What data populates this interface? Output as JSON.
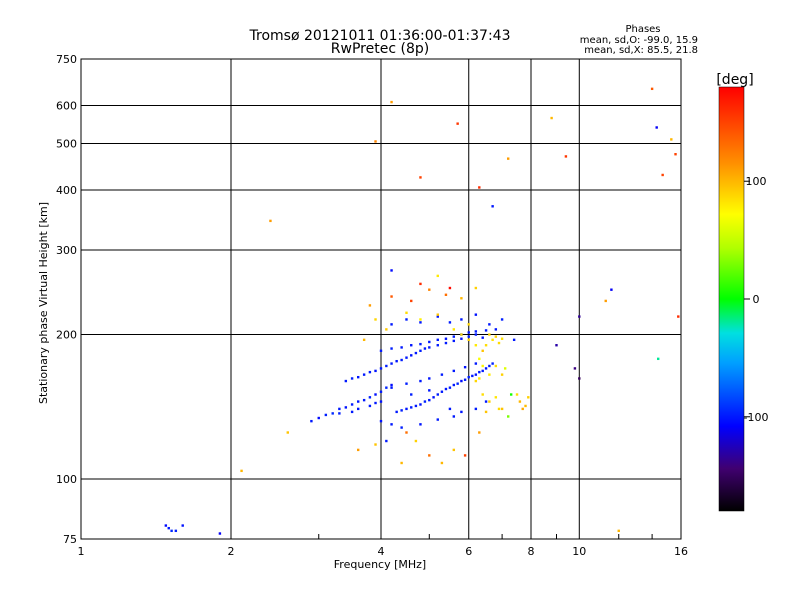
{
  "chart_data": {
    "type": "scatter",
    "title": "Tromsø 20121011 01:36:00-01:37:43",
    "subtitle": "RwPretec (8p)",
    "xlabel": "Frequency [MHz]",
    "ylabel": "Stationary phase Virtual Height [km]",
    "x_scale": "log",
    "y_scale": "log",
    "xlim": [
      1,
      16
    ],
    "ylim": [
      75,
      750
    ],
    "grid": true,
    "x_ticks": [
      1,
      2,
      4,
      6,
      8,
      10,
      16
    ],
    "x_tick_labels": [
      "1",
      "2",
      "4",
      "6",
      "8",
      "10",
      "16"
    ],
    "y_ticks": [
      75,
      100,
      200,
      300,
      400,
      500,
      600,
      750
    ],
    "y_tick_labels": [
      "75",
      "100",
      "200",
      "300",
      "400",
      "500",
      "600",
      "750"
    ],
    "legend": {
      "title": "Phases",
      "lines": [
        "mean, sd,O: -99.0, 15.9",
        "mean, sd,X: 85.5, 21.8"
      ]
    },
    "colorbar": {
      "label": "[deg]",
      "range": [
        -180,
        180
      ],
      "ticks": [
        100,
        0,
        -100
      ],
      "tick_labels": [
        "100",
        "0",
        "-100"
      ]
    },
    "points": [
      {
        "x": 1.5,
        "y": 79,
        "c": -100
      },
      {
        "x": 1.52,
        "y": 78,
        "c": -95
      },
      {
        "x": 1.48,
        "y": 80,
        "c": -105
      },
      {
        "x": 1.55,
        "y": 78,
        "c": -98
      },
      {
        "x": 1.6,
        "y": 80,
        "c": -102
      },
      {
        "x": 1.9,
        "y": 77,
        "c": -110
      },
      {
        "x": 2.1,
        "y": 104,
        "c": 100
      },
      {
        "x": 2.4,
        "y": 345,
        "c": 110
      },
      {
        "x": 2.6,
        "y": 125,
        "c": 95
      },
      {
        "x": 2.9,
        "y": 132,
        "c": -100
      },
      {
        "x": 3.0,
        "y": 134,
        "c": -105
      },
      {
        "x": 3.1,
        "y": 136,
        "c": -98
      },
      {
        "x": 3.2,
        "y": 137,
        "c": -95
      },
      {
        "x": 3.3,
        "y": 140,
        "c": -100
      },
      {
        "x": 3.4,
        "y": 141,
        "c": -102
      },
      {
        "x": 3.5,
        "y": 143,
        "c": -99
      },
      {
        "x": 3.6,
        "y": 145,
        "c": -101
      },
      {
        "x": 3.7,
        "y": 146,
        "c": -100
      },
      {
        "x": 3.8,
        "y": 148,
        "c": -97
      },
      {
        "x": 3.9,
        "y": 150,
        "c": -103
      },
      {
        "x": 4.0,
        "y": 152,
        "c": -100
      },
      {
        "x": 4.1,
        "y": 155,
        "c": -96
      },
      {
        "x": 4.2,
        "y": 157,
        "c": -104
      },
      {
        "x": 3.3,
        "y": 137,
        "c": -98
      },
      {
        "x": 3.5,
        "y": 138,
        "c": -100
      },
      {
        "x": 3.6,
        "y": 140,
        "c": -101
      },
      {
        "x": 3.8,
        "y": 142,
        "c": -99
      },
      {
        "x": 3.9,
        "y": 144,
        "c": -100
      },
      {
        "x": 4.0,
        "y": 145,
        "c": -102
      },
      {
        "x": 4.3,
        "y": 138,
        "c": -100
      },
      {
        "x": 4.4,
        "y": 139,
        "c": -98
      },
      {
        "x": 4.5,
        "y": 140,
        "c": -101
      },
      {
        "x": 4.6,
        "y": 141,
        "c": -99
      },
      {
        "x": 4.7,
        "y": 142,
        "c": -100
      },
      {
        "x": 4.8,
        "y": 143,
        "c": -103
      },
      {
        "x": 4.9,
        "y": 145,
        "c": -97
      },
      {
        "x": 5.0,
        "y": 146,
        "c": -100
      },
      {
        "x": 5.1,
        "y": 148,
        "c": -102
      },
      {
        "x": 5.2,
        "y": 150,
        "c": -98
      },
      {
        "x": 5.3,
        "y": 152,
        "c": -100
      },
      {
        "x": 5.4,
        "y": 154,
        "c": -101
      },
      {
        "x": 5.5,
        "y": 155,
        "c": -99
      },
      {
        "x": 5.6,
        "y": 157,
        "c": -100
      },
      {
        "x": 5.7,
        "y": 158,
        "c": -96
      },
      {
        "x": 5.8,
        "y": 160,
        "c": -104
      },
      {
        "x": 5.9,
        "y": 161,
        "c": -100
      },
      {
        "x": 6.0,
        "y": 163,
        "c": -98
      },
      {
        "x": 6.1,
        "y": 164,
        "c": -100
      },
      {
        "x": 6.2,
        "y": 165,
        "c": -102
      },
      {
        "x": 6.3,
        "y": 167,
        "c": -99
      },
      {
        "x": 6.4,
        "y": 168,
        "c": -100
      },
      {
        "x": 6.5,
        "y": 170,
        "c": -101
      },
      {
        "x": 6.6,
        "y": 172,
        "c": -100
      },
      {
        "x": 6.7,
        "y": 174,
        "c": -97
      },
      {
        "x": 3.4,
        "y": 160,
        "c": -100
      },
      {
        "x": 3.5,
        "y": 162,
        "c": -98
      },
      {
        "x": 3.6,
        "y": 163,
        "c": -101
      },
      {
        "x": 3.7,
        "y": 165,
        "c": -100
      },
      {
        "x": 3.8,
        "y": 167,
        "c": -99
      },
      {
        "x": 3.9,
        "y": 168,
        "c": -102
      },
      {
        "x": 4.0,
        "y": 170,
        "c": -100
      },
      {
        "x": 4.1,
        "y": 172,
        "c": -98
      },
      {
        "x": 4.2,
        "y": 174,
        "c": -100
      },
      {
        "x": 4.3,
        "y": 176,
        "c": -101
      },
      {
        "x": 4.4,
        "y": 177,
        "c": -99
      },
      {
        "x": 4.5,
        "y": 179,
        "c": -100
      },
      {
        "x": 4.6,
        "y": 181,
        "c": -102
      },
      {
        "x": 4.7,
        "y": 183,
        "c": -100
      },
      {
        "x": 4.8,
        "y": 185,
        "c": -98
      },
      {
        "x": 4.9,
        "y": 187,
        "c": -100
      },
      {
        "x": 5.0,
        "y": 188,
        "c": -101
      },
      {
        "x": 5.2,
        "y": 190,
        "c": -99
      },
      {
        "x": 5.4,
        "y": 192,
        "c": -100
      },
      {
        "x": 5.6,
        "y": 194,
        "c": -100
      },
      {
        "x": 5.8,
        "y": 196,
        "c": -102
      },
      {
        "x": 6.0,
        "y": 198,
        "c": -98
      },
      {
        "x": 6.2,
        "y": 200,
        "c": -100
      },
      {
        "x": 6.4,
        "y": 197,
        "c": -101
      },
      {
        "x": 4.0,
        "y": 185,
        "c": -100
      },
      {
        "x": 4.2,
        "y": 187,
        "c": -98
      },
      {
        "x": 4.4,
        "y": 188,
        "c": -100
      },
      {
        "x": 4.6,
        "y": 190,
        "c": -101
      },
      {
        "x": 4.8,
        "y": 191,
        "c": -99
      },
      {
        "x": 5.0,
        "y": 193,
        "c": -100
      },
      {
        "x": 5.2,
        "y": 195,
        "c": -100
      },
      {
        "x": 5.4,
        "y": 196,
        "c": -102
      },
      {
        "x": 5.6,
        "y": 198,
        "c": -98
      },
      {
        "x": 5.8,
        "y": 200,
        "c": -100
      },
      {
        "x": 6.0,
        "y": 202,
        "c": -101
      },
      {
        "x": 6.2,
        "y": 203,
        "c": -99
      },
      {
        "x": 6.5,
        "y": 204,
        "c": -100
      },
      {
        "x": 4.2,
        "y": 155,
        "c": -100
      },
      {
        "x": 4.5,
        "y": 158,
        "c": -98
      },
      {
        "x": 4.8,
        "y": 160,
        "c": -100
      },
      {
        "x": 5.0,
        "y": 162,
        "c": -101
      },
      {
        "x": 5.3,
        "y": 165,
        "c": -99
      },
      {
        "x": 5.6,
        "y": 168,
        "c": -100
      },
      {
        "x": 5.9,
        "y": 171,
        "c": -102
      },
      {
        "x": 6.2,
        "y": 174,
        "c": -100
      },
      {
        "x": 4.6,
        "y": 150,
        "c": -98
      },
      {
        "x": 5.0,
        "y": 153,
        "c": -100
      },
      {
        "x": 5.5,
        "y": 140,
        "c": -100
      },
      {
        "x": 5.8,
        "y": 138,
        "c": -101
      },
      {
        "x": 6.2,
        "y": 140,
        "c": -99
      },
      {
        "x": 6.5,
        "y": 145,
        "c": -100
      },
      {
        "x": 4.2,
        "y": 130,
        "c": -100
      },
      {
        "x": 4.4,
        "y": 128,
        "c": -98
      },
      {
        "x": 4.8,
        "y": 130,
        "c": -101
      },
      {
        "x": 5.2,
        "y": 133,
        "c": -99
      },
      {
        "x": 5.6,
        "y": 135,
        "c": -100
      },
      {
        "x": 4.0,
        "y": 132,
        "c": -102
      },
      {
        "x": 4.2,
        "y": 210,
        "c": -100
      },
      {
        "x": 4.5,
        "y": 215,
        "c": -98
      },
      {
        "x": 4.8,
        "y": 212,
        "c": -100
      },
      {
        "x": 5.2,
        "y": 218,
        "c": -101
      },
      {
        "x": 5.5,
        "y": 212,
        "c": -99
      },
      {
        "x": 5.8,
        "y": 215,
        "c": -100
      },
      {
        "x": 6.2,
        "y": 220,
        "c": -102
      },
      {
        "x": 6.6,
        "y": 210,
        "c": -100
      },
      {
        "x": 7.0,
        "y": 215,
        "c": -98
      },
      {
        "x": 7.4,
        "y": 195,
        "c": -100
      },
      {
        "x": 6.8,
        "y": 205,
        "c": -101
      },
      {
        "x": 5.8,
        "y": 200,
        "c": 85
      },
      {
        "x": 6.0,
        "y": 195,
        "c": 90
      },
      {
        "x": 6.2,
        "y": 190,
        "c": 80
      },
      {
        "x": 6.4,
        "y": 185,
        "c": 95
      },
      {
        "x": 6.5,
        "y": 190,
        "c": 85
      },
      {
        "x": 6.6,
        "y": 200,
        "c": 88
      },
      {
        "x": 6.7,
        "y": 195,
        "c": 82
      },
      {
        "x": 6.8,
        "y": 198,
        "c": 90
      },
      {
        "x": 6.9,
        "y": 192,
        "c": 86
      },
      {
        "x": 7.0,
        "y": 196,
        "c": 84
      },
      {
        "x": 6.3,
        "y": 178,
        "c": 70
      },
      {
        "x": 6.4,
        "y": 172,
        "c": 75
      },
      {
        "x": 6.6,
        "y": 165,
        "c": 80
      },
      {
        "x": 6.2,
        "y": 160,
        "c": 88
      },
      {
        "x": 6.4,
        "y": 150,
        "c": 85
      },
      {
        "x": 6.6,
        "y": 145,
        "c": 90
      },
      {
        "x": 6.8,
        "y": 148,
        "c": 82
      },
      {
        "x": 6.9,
        "y": 140,
        "c": 86
      },
      {
        "x": 6.5,
        "y": 138,
        "c": 95
      },
      {
        "x": 7.6,
        "y": 145,
        "c": 100
      },
      {
        "x": 7.7,
        "y": 140,
        "c": 105
      },
      {
        "x": 7.8,
        "y": 142,
        "c": 98
      },
      {
        "x": 7.9,
        "y": 148,
        "c": 90
      },
      {
        "x": 7.5,
        "y": 150,
        "c": 85
      },
      {
        "x": 7.0,
        "y": 140,
        "c": 95
      },
      {
        "x": 7.2,
        "y": 135,
        "c": 30
      },
      {
        "x": 7.3,
        "y": 150,
        "c": 5
      },
      {
        "x": 7.1,
        "y": 170,
        "c": 60
      },
      {
        "x": 7.0,
        "y": 165,
        "c": 90
      },
      {
        "x": 6.8,
        "y": 172,
        "c": 85
      },
      {
        "x": 6.3,
        "y": 162,
        "c": 80
      },
      {
        "x": 6.0,
        "y": 210,
        "c": 88
      },
      {
        "x": 5.6,
        "y": 205,
        "c": 82
      },
      {
        "x": 5.2,
        "y": 220,
        "c": 95
      },
      {
        "x": 4.8,
        "y": 215,
        "c": 78
      },
      {
        "x": 4.5,
        "y": 222,
        "c": 85
      },
      {
        "x": 4.1,
        "y": 205,
        "c": 92
      },
      {
        "x": 3.9,
        "y": 215,
        "c": 88
      },
      {
        "x": 3.7,
        "y": 195,
        "c": 100
      },
      {
        "x": 3.8,
        "y": 230,
        "c": 110
      },
      {
        "x": 4.2,
        "y": 240,
        "c": 140
      },
      {
        "x": 4.6,
        "y": 235,
        "c": 150
      },
      {
        "x": 5.0,
        "y": 248,
        "c": 120
      },
      {
        "x": 5.4,
        "y": 242,
        "c": 130
      },
      {
        "x": 5.8,
        "y": 238,
        "c": 100
      },
      {
        "x": 6.2,
        "y": 250,
        "c": 90
      },
      {
        "x": 5.2,
        "y": 265,
        "c": 80
      },
      {
        "x": 4.8,
        "y": 255,
        "c": 160
      },
      {
        "x": 5.5,
        "y": 250,
        "c": 175
      },
      {
        "x": 3.6,
        "y": 115,
        "c": 110
      },
      {
        "x": 3.9,
        "y": 118,
        "c": 95
      },
      {
        "x": 4.4,
        "y": 108,
        "c": 100
      },
      {
        "x": 4.7,
        "y": 120,
        "c": 90
      },
      {
        "x": 5.0,
        "y": 112,
        "c": 130
      },
      {
        "x": 5.3,
        "y": 108,
        "c": 100
      },
      {
        "x": 5.6,
        "y": 115,
        "c": 95
      },
      {
        "x": 5.9,
        "y": 112,
        "c": 150
      },
      {
        "x": 6.3,
        "y": 125,
        "c": 110
      },
      {
        "x": 4.5,
        "y": 125,
        "c": 130
      },
      {
        "x": 4.1,
        "y": 120,
        "c": -100
      },
      {
        "x": 4.2,
        "y": 272,
        "c": -105
      },
      {
        "x": 6.7,
        "y": 370,
        "c": -100
      },
      {
        "x": 11.6,
        "y": 248,
        "c": -110
      },
      {
        "x": 10.0,
        "y": 218,
        "c": -135
      },
      {
        "x": 9.8,
        "y": 170,
        "c": -140
      },
      {
        "x": 9.0,
        "y": 190,
        "c": -130
      },
      {
        "x": 10.0,
        "y": 162,
        "c": -150
      },
      {
        "x": 3.9,
        "y": 505,
        "c": 120
      },
      {
        "x": 4.2,
        "y": 610,
        "c": 110
      },
      {
        "x": 4.8,
        "y": 425,
        "c": 150
      },
      {
        "x": 5.7,
        "y": 550,
        "c": 155
      },
      {
        "x": 6.3,
        "y": 405,
        "c": 160
      },
      {
        "x": 7.2,
        "y": 465,
        "c": 110
      },
      {
        "x": 8.8,
        "y": 565,
        "c": 100
      },
      {
        "x": 9.4,
        "y": 470,
        "c": 155
      },
      {
        "x": 11.3,
        "y": 235,
        "c": 110
      },
      {
        "x": 12.0,
        "y": 78,
        "c": 100
      },
      {
        "x": 14.0,
        "y": 650,
        "c": 140
      },
      {
        "x": 14.3,
        "y": 540,
        "c": -110
      },
      {
        "x": 14.7,
        "y": 430,
        "c": 150
      },
      {
        "x": 15.3,
        "y": 510,
        "c": 100
      },
      {
        "x": 15.6,
        "y": 475,
        "c": 150
      },
      {
        "x": 15.8,
        "y": 218,
        "c": 160
      },
      {
        "x": 14.4,
        "y": 178,
        "c": -20
      }
    ]
  }
}
